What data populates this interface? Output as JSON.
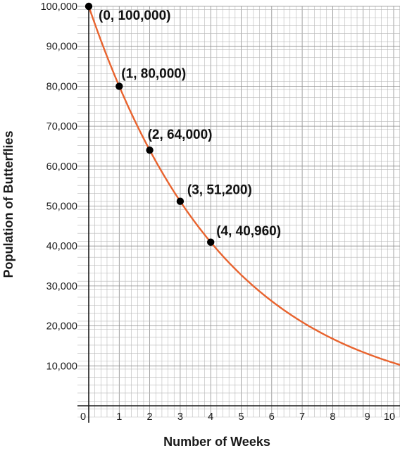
{
  "chart_data": {
    "type": "line",
    "xlabel": "Number of Weeks",
    "ylabel": "Population of Butterflies",
    "xlim": [
      0,
      10.5
    ],
    "ylim": [
      0,
      100000
    ],
    "x_ticks": [
      "0",
      "1",
      "2",
      "3",
      "4",
      "5",
      "6",
      "7",
      "8",
      "9",
      "10"
    ],
    "y_ticks": [
      "10,000",
      "20,000",
      "30,000",
      "40,000",
      "50,000",
      "60,000",
      "70,000",
      "80,000",
      "90,000",
      "100,000"
    ],
    "grid": true,
    "curve": {
      "function": "exponential",
      "initial": 100000,
      "factor": 0.8,
      "color": "#e8632e"
    },
    "points": [
      {
        "x": 0,
        "y": 100000,
        "label": "(0, 100,000)"
      },
      {
        "x": 1,
        "y": 80000,
        "label": "(1, 80,000)"
      },
      {
        "x": 2,
        "y": 64000,
        "label": "(2, 64,000)"
      },
      {
        "x": 3,
        "y": 51200,
        "label": "(3, 51,200)"
      },
      {
        "x": 4,
        "y": 40960,
        "label": "(4, 40,960)"
      }
    ],
    "point_color": "#000000"
  }
}
